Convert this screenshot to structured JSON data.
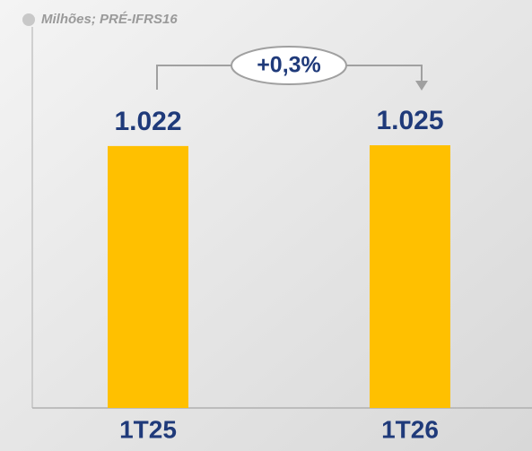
{
  "chart_data": {
    "type": "bar",
    "subtitle": "Milhões; PRÉ-IFRS16",
    "categories": [
      "1T25",
      "1T26"
    ],
    "values": [
      1022,
      1025
    ],
    "value_labels": [
      "1.022",
      "1.025"
    ],
    "color": "#FFC000",
    "annotation": "+0,3%",
    "ylim": [
      0,
      1200
    ]
  }
}
